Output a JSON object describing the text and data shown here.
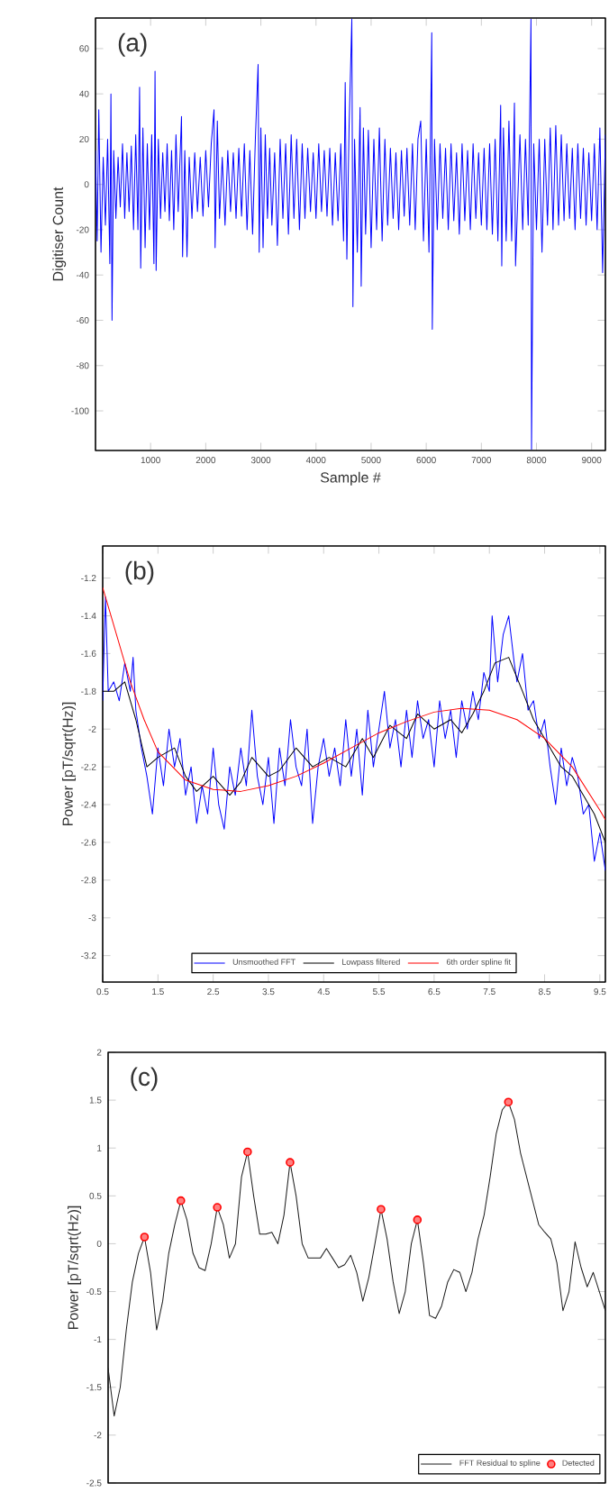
{
  "chart_data": [
    {
      "type": "line",
      "annotations": [
        "(a)"
      ],
      "xlabel": "Sample #",
      "ylabel": "Digitiser Count",
      "xlim": [
        0,
        9250
      ],
      "ylim": [
        -117.5,
        73.5
      ],
      "xticks": [
        1000,
        2000,
        3000,
        4000,
        5000,
        6000,
        7000,
        8000,
        9000
      ],
      "yticks": [
        -100,
        -80,
        -60,
        -40,
        -20,
        0,
        20,
        40,
        60
      ],
      "series": [
        {
          "color": "#0000ff",
          "x": [
            0,
            30,
            60,
            100,
            140,
            180,
            220,
            260,
            280,
            300,
            330,
            370,
            410,
            450,
            490,
            530,
            570,
            610,
            650,
            690,
            730,
            770,
            800,
            820,
            860,
            900,
            940,
            980,
            1020,
            1060,
            1080,
            1100,
            1140,
            1180,
            1220,
            1260,
            1300,
            1340,
            1380,
            1420,
            1460,
            1500,
            1560,
            1580,
            1620,
            1660,
            1700,
            1750,
            1800,
            1850,
            1900,
            1950,
            2000,
            2050,
            2100,
            2150,
            2170,
            2210,
            2250,
            2300,
            2350,
            2400,
            2450,
            2500,
            2550,
            2600,
            2650,
            2700,
            2750,
            2800,
            2850,
            2900,
            2950,
            2970,
            3000,
            3040,
            3080,
            3120,
            3160,
            3200,
            3250,
            3300,
            3350,
            3400,
            3450,
            3500,
            3550,
            3600,
            3650,
            3700,
            3750,
            3800,
            3850,
            3900,
            3950,
            4000,
            4050,
            4100,
            4150,
            4200,
            4250,
            4300,
            4350,
            4400,
            4450,
            4500,
            4530,
            4560,
            4600,
            4650,
            4670,
            4700,
            4750,
            4800,
            4820,
            4860,
            4900,
            4950,
            5000,
            5050,
            5100,
            5150,
            5200,
            5250,
            5300,
            5350,
            5400,
            5450,
            5500,
            5550,
            5600,
            5650,
            5700,
            5750,
            5800,
            5850,
            5900,
            5950,
            6000,
            6050,
            6100,
            6110,
            6150,
            6200,
            6250,
            6300,
            6350,
            6400,
            6450,
            6500,
            6550,
            6600,
            6650,
            6700,
            6750,
            6800,
            6850,
            6900,
            6950,
            7000,
            7050,
            7100,
            7150,
            7200,
            7250,
            7300,
            7350,
            7370,
            7400,
            7450,
            7500,
            7550,
            7600,
            7620,
            7700,
            7750,
            7800,
            7850,
            7900,
            7910,
            7950,
            8000,
            8050,
            8100,
            8150,
            8200,
            8250,
            8300,
            8350,
            8400,
            8450,
            8500,
            8550,
            8600,
            8650,
            8700,
            8750,
            8800,
            8850,
            8900,
            8950,
            9000,
            9050,
            9100,
            9150,
            9200,
            9250
          ],
          "values": [
            15,
            -25,
            33,
            -30,
            12,
            -18,
            20,
            -35,
            40,
            -60,
            15,
            -15,
            12,
            -10,
            18,
            -15,
            14,
            -12,
            17,
            -20,
            22,
            -20,
            43,
            -37,
            25,
            -28,
            18,
            -20,
            22,
            -35,
            50,
            -38,
            20,
            -15,
            14,
            -12,
            18,
            -16,
            15,
            -20,
            22,
            -12,
            30,
            -32,
            15,
            -32,
            12,
            -15,
            14,
            -12,
            12,
            -14,
            15,
            -10,
            18,
            33,
            -28,
            28,
            -15,
            12,
            -18,
            15,
            -12,
            14,
            -15,
            16,
            -14,
            18,
            -20,
            15,
            -22,
            20,
            53,
            -30,
            25,
            -28,
            22,
            -15,
            16,
            -18,
            14,
            -27,
            20,
            -15,
            18,
            -22,
            22,
            -15,
            20,
            -20,
            18,
            -15,
            16,
            -12,
            14,
            -15,
            18,
            -12,
            15,
            -14,
            16,
            -18,
            14,
            -16,
            18,
            -25,
            45,
            -33,
            25,
            73,
            -54,
            20,
            -30,
            34,
            -45,
            25,
            -22,
            24,
            -28,
            20,
            -20,
            25,
            -25,
            20,
            -18,
            16,
            -15,
            14,
            -20,
            15,
            -14,
            16,
            -18,
            18,
            -20,
            20,
            28,
            -25,
            20,
            -30,
            67,
            -64,
            20,
            -20,
            18,
            -15,
            16,
            -20,
            18,
            -16,
            14,
            -22,
            18,
            -16,
            15,
            -20,
            18,
            -15,
            14,
            -18,
            16,
            -20,
            18,
            -22,
            20,
            -25,
            35,
            -36,
            25,
            -25,
            28,
            -25,
            36,
            -36,
            22,
            -20,
            20,
            -18,
            73,
            -117,
            18,
            -20,
            20,
            -30,
            20,
            -18,
            25,
            -20,
            26,
            -18,
            22,
            -16,
            18,
            -15,
            16,
            -20,
            18,
            -15,
            16,
            -18,
            14,
            -16,
            18,
            -20,
            25,
            -39,
            22
          ]
        }
      ]
    },
    {
      "type": "line",
      "annotations": [
        "(b)"
      ],
      "ylabel": "Power [pT/sqrt(Hz)]",
      "xlim": [
        0.5,
        9.6
      ],
      "ylim": [
        -3.34,
        -1.03
      ],
      "xticks": [
        0.5,
        1.5,
        2.5,
        3.5,
        4.5,
        5.5,
        6.5,
        7.5,
        8.5,
        9.5
      ],
      "yticks": [
        -3.2,
        -3,
        -2.8,
        -2.6,
        -2.4,
        -2.2,
        -2,
        -1.8,
        -1.6,
        -1.4,
        -1.2
      ],
      "legend": "bottom",
      "series": [
        {
          "name": "Unsmoothed FFT",
          "color": "#0000ff",
          "x": [
            0.5,
            0.55,
            0.6,
            0.7,
            0.8,
            0.9,
            1.0,
            1.05,
            1.1,
            1.2,
            1.3,
            1.4,
            1.5,
            1.6,
            1.7,
            1.8,
            1.9,
            2.0,
            2.1,
            2.2,
            2.3,
            2.4,
            2.5,
            2.6,
            2.7,
            2.8,
            2.9,
            3.0,
            3.1,
            3.2,
            3.3,
            3.4,
            3.5,
            3.6,
            3.7,
            3.8,
            3.9,
            4.0,
            4.1,
            4.2,
            4.3,
            4.4,
            4.5,
            4.6,
            4.7,
            4.8,
            4.9,
            5.0,
            5.1,
            5.2,
            5.3,
            5.4,
            5.5,
            5.6,
            5.7,
            5.8,
            5.9,
            6.0,
            6.1,
            6.2,
            6.3,
            6.4,
            6.5,
            6.6,
            6.7,
            6.8,
            6.9,
            7.0,
            7.1,
            7.2,
            7.3,
            7.4,
            7.5,
            7.55,
            7.65,
            7.75,
            7.85,
            7.95,
            8.0,
            8.1,
            8.2,
            8.3,
            8.4,
            8.5,
            8.6,
            8.7,
            8.8,
            8.9,
            9.0,
            9.1,
            9.2,
            9.3,
            9.4,
            9.5,
            9.6
          ],
          "values": [
            -1.85,
            -1.3,
            -1.8,
            -1.75,
            -1.85,
            -1.65,
            -1.8,
            -1.62,
            -1.9,
            -2.1,
            -2.25,
            -2.45,
            -2.1,
            -2.3,
            -2.0,
            -2.2,
            -2.05,
            -2.35,
            -2.2,
            -2.5,
            -2.3,
            -2.45,
            -2.1,
            -2.4,
            -2.53,
            -2.2,
            -2.35,
            -2.1,
            -2.3,
            -1.9,
            -2.25,
            -2.4,
            -2.15,
            -2.5,
            -2.1,
            -2.3,
            -1.95,
            -2.2,
            -2.3,
            -2.0,
            -2.5,
            -2.2,
            -2.05,
            -2.25,
            -2.1,
            -2.3,
            -1.95,
            -2.25,
            -2.0,
            -2.35,
            -1.9,
            -2.2,
            -2.0,
            -1.8,
            -2.1,
            -1.95,
            -2.2,
            -1.9,
            -2.15,
            -1.85,
            -2.05,
            -1.95,
            -2.2,
            -1.85,
            -2.05,
            -1.9,
            -2.15,
            -1.85,
            -2.0,
            -1.8,
            -1.95,
            -1.7,
            -1.8,
            -1.4,
            -1.75,
            -1.5,
            -1.4,
            -1.65,
            -1.75,
            -1.6,
            -1.9,
            -1.85,
            -2.05,
            -1.95,
            -2.2,
            -2.4,
            -2.1,
            -2.3,
            -2.15,
            -2.25,
            -2.45,
            -2.4,
            -2.7,
            -2.55,
            -2.75
          ]
        },
        {
          "name": "Lowpass filtered",
          "color": "#000000",
          "x": [
            0.5,
            0.7,
            0.9,
            1.1,
            1.3,
            1.5,
            1.8,
            2.0,
            2.2,
            2.5,
            2.8,
            3.0,
            3.2,
            3.5,
            3.7,
            4.0,
            4.3,
            4.6,
            4.9,
            5.2,
            5.4,
            5.7,
            6.0,
            6.2,
            6.5,
            6.8,
            7.0,
            7.2,
            7.4,
            7.6,
            7.85,
            8.1,
            8.3,
            8.5,
            8.8,
            9.0,
            9.2,
            9.4,
            9.6
          ],
          "values": [
            -1.8,
            -1.8,
            -1.75,
            -1.95,
            -2.2,
            -2.15,
            -2.1,
            -2.25,
            -2.33,
            -2.25,
            -2.35,
            -2.28,
            -2.15,
            -2.25,
            -2.22,
            -2.1,
            -2.2,
            -2.15,
            -2.2,
            -2.05,
            -2.15,
            -1.98,
            -2.05,
            -1.92,
            -2.0,
            -1.95,
            -2.02,
            -1.92,
            -1.8,
            -1.65,
            -1.62,
            -1.8,
            -1.95,
            -2.05,
            -2.2,
            -2.25,
            -2.35,
            -2.45,
            -2.6
          ]
        },
        {
          "name": "6th order spline fit",
          "color": "#ff0000",
          "x": [
            0.5,
            0.75,
            1,
            1.25,
            1.5,
            2,
            2.5,
            3,
            3.5,
            4,
            4.5,
            5,
            5.5,
            6,
            6.5,
            7,
            7.5,
            8,
            8.5,
            9,
            9.5,
            9.6
          ],
          "values": [
            -1.25,
            -1.5,
            -1.75,
            -1.95,
            -2.12,
            -2.27,
            -2.32,
            -2.33,
            -2.3,
            -2.25,
            -2.18,
            -2.1,
            -2.02,
            -1.96,
            -1.91,
            -1.89,
            -1.9,
            -1.95,
            -2.05,
            -2.2,
            -2.43,
            -2.48
          ]
        }
      ]
    },
    {
      "type": "line",
      "annotations": [
        "(c)"
      ],
      "ylabel": "Power [pT/sqrt(Hz)]",
      "tick_labels": "y",
      "ylim": [
        -2.5,
        2
      ],
      "yticks": [
        -2.5,
        -2,
        -1.5,
        -1,
        -0.5,
        0,
        0.5,
        1,
        1.5,
        2
      ],
      "legend": "bottom right",
      "categories": [
        null,
        null,
        null,
        null,
        null,
        null,
        null,
        null,
        null,
        null,
        null,
        null,
        null,
        null,
        null,
        null,
        null,
        null,
        null,
        null,
        null,
        null,
        null,
        null,
        null,
        null,
        null,
        null,
        null,
        null,
        null,
        null,
        null,
        null,
        null,
        null,
        null,
        null,
        null,
        null,
        null,
        null,
        null,
        null,
        null,
        null,
        null,
        null,
        null,
        null,
        null,
        null,
        null,
        null,
        null,
        null,
        null,
        null,
        null,
        null,
        null,
        null,
        null,
        null,
        null,
        null,
        null,
        null,
        null,
        null,
        null,
        null,
        null,
        null,
        null,
        null,
        null,
        null,
        null,
        null,
        null,
        null,
        null
      ],
      "series": [
        {
          "name": "FFT Residual to spline",
          "color": "#1a1a1a",
          "values": [
            -1.3,
            -1.8,
            -1.5,
            -0.9,
            -0.4,
            -0.1,
            0.07,
            -0.3,
            -0.9,
            -0.6,
            -0.1,
            0.2,
            0.45,
            0.25,
            -0.1,
            -0.25,
            -0.28,
            0.0,
            0.38,
            0.2,
            -0.15,
            0.0,
            0.7,
            0.96,
            0.5,
            0.1,
            0.1,
            0.12,
            0.0,
            0.3,
            0.85,
            0.5,
            0.0,
            -0.15,
            -0.15,
            -0.15,
            -0.05,
            -0.15,
            -0.25,
            -0.22,
            -0.12,
            -0.3,
            -0.6,
            -0.35,
            0.0,
            0.36,
            0.05,
            -0.4,
            -0.73,
            -0.5,
            0.0,
            0.25,
            -0.2,
            -0.75,
            -0.78,
            -0.65,
            -0.4,
            -0.27,
            -0.3,
            -0.5,
            -0.3,
            0.05,
            0.3,
            0.7,
            1.15,
            1.4,
            1.48,
            1.3,
            0.95,
            0.7,
            0.45,
            0.2,
            0.12,
            0.05,
            -0.2,
            -0.7,
            -0.5,
            0.02,
            -0.25,
            -0.45,
            -0.3,
            -0.5,
            -0.7
          ]
        },
        {
          "name": "Detected",
          "type": "scatter",
          "marker": "circle",
          "color": "#ff0000",
          "values": [
            null,
            null,
            null,
            null,
            null,
            null,
            0.07,
            null,
            null,
            null,
            null,
            null,
            0.45,
            null,
            null,
            null,
            null,
            null,
            0.38,
            null,
            null,
            null,
            null,
            0.96,
            null,
            null,
            null,
            null,
            null,
            null,
            0.85,
            null,
            null,
            null,
            null,
            null,
            null,
            null,
            null,
            null,
            null,
            null,
            null,
            null,
            null,
            0.36,
            null,
            null,
            null,
            null,
            null,
            0.25,
            null,
            null,
            null,
            null,
            null,
            null,
            null,
            null,
            null,
            null,
            null,
            null,
            null,
            null,
            1.48,
            null,
            null,
            null,
            null,
            null,
            null,
            null,
            null,
            null,
            null,
            null,
            null,
            null,
            null,
            null,
            null
          ]
        }
      ]
    }
  ]
}
